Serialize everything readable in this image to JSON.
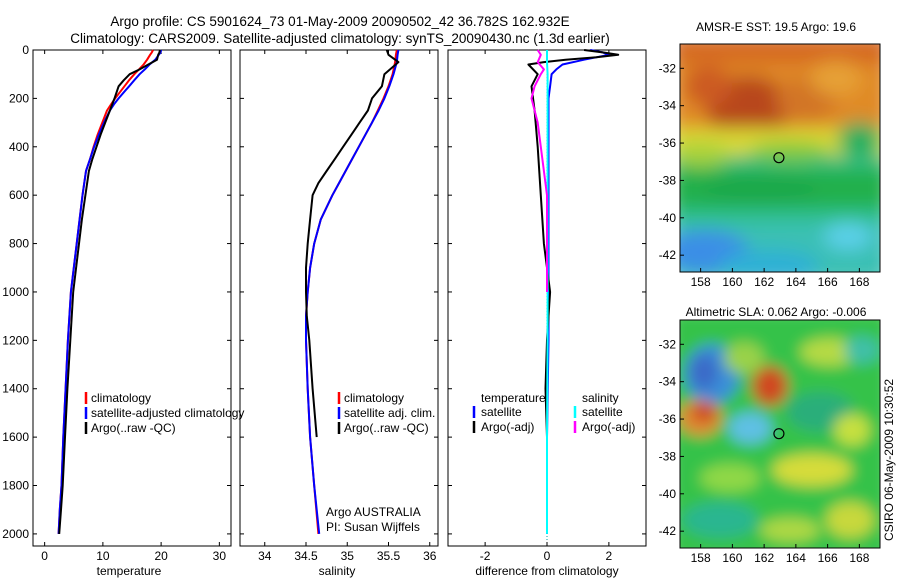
{
  "header": {
    "line1": "Argo profile: CS 5901624_73 01-May-2009 20090502_42 36.782S 162.932E",
    "line2": "Climatology: CARS2009. Satellite-adjusted climatology: synTS_20090430.nc (1.3d earlier)"
  },
  "sidebar_stamp": "CSIRO 06-May-2009 10:30:52",
  "colors": {
    "climatology": "#ff0000",
    "satellite": "#0000ff",
    "argo": "#000000",
    "salinity_satellite": "#00ffff",
    "salinity_argo": "#ff00ff"
  },
  "chart_data": [
    {
      "type": "line",
      "xlabel": "temperature",
      "xlim": [
        -2,
        32
      ],
      "ylim": [
        2050,
        0
      ],
      "xticks": [
        "0",
        "10",
        "20",
        "30"
      ],
      "yticks": [
        "0",
        "200",
        "400",
        "600",
        "800",
        "1000",
        "1200",
        "1400",
        "1600",
        "1800",
        "2000"
      ],
      "legend": {
        "placement": "lower-right",
        "entries": [
          "climatology",
          "satellite-adjusted climatology",
          "Argo(..raw -QC)"
        ]
      },
      "series": [
        {
          "name": "climatology",
          "color": "#ff0000",
          "x": [
            18.6,
            18.4,
            18.1,
            17.6,
            17.0,
            16.2,
            15.4,
            14.5,
            13.7,
            12.9,
            12.1,
            11.4,
            10.7,
            9.9,
            9.1,
            8.4,
            7.8,
            7.1,
            6.5,
            6.0,
            5.5,
            5.0,
            4.5,
            4.0,
            3.6,
            3.2,
            2.9,
            2.6,
            2.4
          ],
          "y": [
            0,
            10,
            20,
            40,
            60,
            80,
            100,
            125,
            150,
            175,
            200,
            225,
            250,
            300,
            350,
            400,
            450,
            500,
            600,
            700,
            800,
            900,
            1000,
            1200,
            1400,
            1600,
            1800,
            1900,
            2000
          ]
        },
        {
          "name": "satellite-adjusted climatology",
          "color": "#0000ff",
          "x": [
            20.0,
            19.9,
            19.6,
            19.0,
            18.0,
            17.2,
            16.3,
            15.4,
            14.5,
            13.6,
            12.7,
            11.9,
            11.2,
            10.2,
            9.3,
            8.5,
            7.8,
            7.1,
            6.5,
            6.0,
            5.5,
            5.0,
            4.5,
            4.0,
            3.6,
            3.2,
            2.9,
            2.6,
            2.4
          ],
          "y": [
            0,
            10,
            20,
            40,
            60,
            80,
            100,
            125,
            150,
            175,
            200,
            225,
            250,
            300,
            350,
            400,
            450,
            500,
            600,
            700,
            800,
            900,
            1000,
            1200,
            1400,
            1600,
            1800,
            1900,
            2000
          ]
        },
        {
          "name": "Argo(..raw -QC)",
          "color": "#000000",
          "x": [
            19.8,
            19.7,
            19.5,
            19.3,
            17.8,
            16.3,
            14.6,
            13.6,
            12.7,
            12.0,
            11.2,
            10.4,
            9.6,
            8.9,
            8.2,
            7.6,
            7.0,
            6.4,
            5.9,
            5.4,
            4.9,
            4.4,
            3.9,
            3.5,
            3.1,
            2.8,
            2.5
          ],
          "y": [
            0,
            10,
            20,
            40,
            60,
            80,
            100,
            125,
            150,
            200,
            250,
            300,
            350,
            400,
            450,
            500,
            600,
            700,
            800,
            900,
            1000,
            1200,
            1400,
            1600,
            1800,
            1900,
            2000
          ]
        }
      ]
    },
    {
      "type": "line",
      "xlabel": "salinity",
      "xlim": [
        33.7,
        36.1
      ],
      "ylim": [
        2050,
        0
      ],
      "xticks": [
        "34",
        "34.5",
        "35",
        "35.5",
        "36"
      ],
      "legend": {
        "placement": "lower-right",
        "entries": [
          "climatology",
          "satellite adj. clim.",
          "Argo(..raw -QC)"
        ]
      },
      "annotations": [
        "Argo AUSTRALIA",
        "PI: Susan Wijffels"
      ],
      "series": [
        {
          "name": "climatology",
          "color": "#ff0000",
          "x": [
            35.6,
            35.59,
            35.58,
            35.55,
            35.5,
            35.44,
            35.37,
            35.3,
            35.22,
            35.14,
            35.06,
            34.98,
            34.9,
            34.82,
            34.75,
            34.68,
            34.6,
            34.55,
            34.52,
            34.5,
            34.5,
            34.52,
            34.55,
            34.6,
            34.65
          ],
          "y": [
            0,
            20,
            50,
            100,
            150,
            200,
            250,
            300,
            350,
            400,
            450,
            500,
            550,
            600,
            650,
            700,
            800,
            900,
            1000,
            1100,
            1200,
            1400,
            1600,
            1800,
            2000
          ]
        },
        {
          "name": "satellite adj. clim.",
          "color": "#0000ff",
          "x": [
            35.62,
            35.61,
            35.6,
            35.56,
            35.51,
            35.45,
            35.38,
            35.3,
            35.22,
            35.14,
            35.06,
            34.98,
            34.9,
            34.82,
            34.75,
            34.68,
            34.6,
            34.55,
            34.52,
            34.5,
            34.5,
            34.52,
            34.55,
            34.6,
            34.66
          ],
          "y": [
            0,
            20,
            50,
            100,
            150,
            200,
            250,
            300,
            350,
            400,
            450,
            500,
            550,
            600,
            650,
            700,
            800,
            900,
            1000,
            1100,
            1200,
            1400,
            1600,
            1800,
            2000
          ]
        },
        {
          "name": "Argo(..raw -QC)",
          "color": "#000000",
          "x": [
            35.48,
            35.5,
            35.62,
            35.45,
            35.42,
            35.3,
            35.25,
            35.15,
            35.05,
            34.95,
            34.85,
            34.75,
            34.65,
            34.58,
            34.55,
            34.52,
            34.5,
            34.5,
            34.51,
            34.54,
            34.58,
            34.63
          ],
          "y": [
            0,
            20,
            50,
            100,
            150,
            200,
            250,
            300,
            350,
            400,
            450,
            500,
            550,
            600,
            700,
            800,
            900,
            1000,
            1100,
            1200,
            1400,
            1600
          ]
        }
      ]
    },
    {
      "type": "line",
      "xlabel": "difference from climatology",
      "xlim": [
        -3.2,
        3.2
      ],
      "ylim": [
        2050,
        0
      ],
      "xticks": [
        "-2",
        "0",
        "2"
      ],
      "legend": {
        "placement": "lower-center",
        "groups": [
          {
            "title": "temperature",
            "entries": [
              "satellite",
              "Argo(-adj)"
            ]
          },
          {
            "title": "salinity",
            "entries": [
              "satellite",
              "Argo(-adj)"
            ]
          }
        ]
      },
      "series": [
        {
          "name": "temperature satellite",
          "color": "#0000ff",
          "x": [
            1.4,
            1.8,
            2.0,
            1.2,
            0.5,
            0.3,
            0.15,
            0.1,
            0.05,
            0.05,
            0.05,
            0.05,
            0.05,
            0.05,
            0.0,
            0.0
          ],
          "y": [
            0,
            10,
            20,
            40,
            60,
            80,
            100,
            150,
            200,
            300,
            500,
            800,
            1000,
            1200,
            1600,
            2000
          ]
        },
        {
          "name": "temperature Argo(-adj)",
          "color": "#000000",
          "x": [
            1.2,
            1.8,
            2.3,
            1.6,
            0.6,
            -0.1,
            -0.6,
            -0.3,
            -0.5,
            -0.4,
            -0.3,
            -0.2,
            -0.1,
            0.0,
            0.1,
            0.05,
            0.0,
            -0.05,
            0.0
          ],
          "y": [
            0,
            10,
            20,
            30,
            40,
            50,
            60,
            100,
            150,
            250,
            400,
            600,
            800,
            900,
            1000,
            1100,
            1200,
            1400,
            1600
          ]
        },
        {
          "name": "salinity satellite",
          "color": "#00ffff",
          "x": [
            0.0,
            0.0,
            0.02,
            0.02,
            0.02,
            0.02,
            0.02,
            0.0,
            0.0
          ],
          "y": [
            0,
            50,
            100,
            200,
            500,
            800,
            1200,
            1600,
            2000
          ]
        },
        {
          "name": "salinity Argo(-adj)",
          "color": "#ff00ff",
          "x": [
            -0.3,
            -0.2,
            -0.3,
            -0.1,
            -0.2,
            -0.4,
            -0.5,
            -0.3,
            -0.2,
            -0.1,
            0.0,
            0.0,
            0.0
          ],
          "y": [
            0,
            20,
            50,
            80,
            100,
            150,
            200,
            300,
            400,
            500,
            600,
            800,
            1000
          ]
        }
      ]
    },
    {
      "type": "heatmap",
      "title": "AMSR-E SST: 19.5  Argo: 19.6",
      "xlim": [
        156.7,
        169.3
      ],
      "ylim": [
        -42.9,
        -30.7
      ],
      "xticks": [
        "158",
        "160",
        "162",
        "164",
        "166",
        "168"
      ],
      "yticks": [
        "-32",
        "-34",
        "-36",
        "-38",
        "-40",
        "-42"
      ],
      "marker": {
        "lon": 162.932,
        "lat": -36.782
      }
    },
    {
      "type": "heatmap",
      "title": "Altimetric SLA: 0.062  Argo: -0.006",
      "xlim": [
        156.7,
        169.3
      ],
      "ylim": [
        -42.9,
        -30.7
      ],
      "xticks": [
        "158",
        "160",
        "162",
        "164",
        "166",
        "168"
      ],
      "yticks": [
        "-32",
        "-34",
        "-36",
        "-38",
        "-40",
        "-42"
      ],
      "marker": {
        "lon": 162.932,
        "lat": -36.782
      }
    }
  ]
}
